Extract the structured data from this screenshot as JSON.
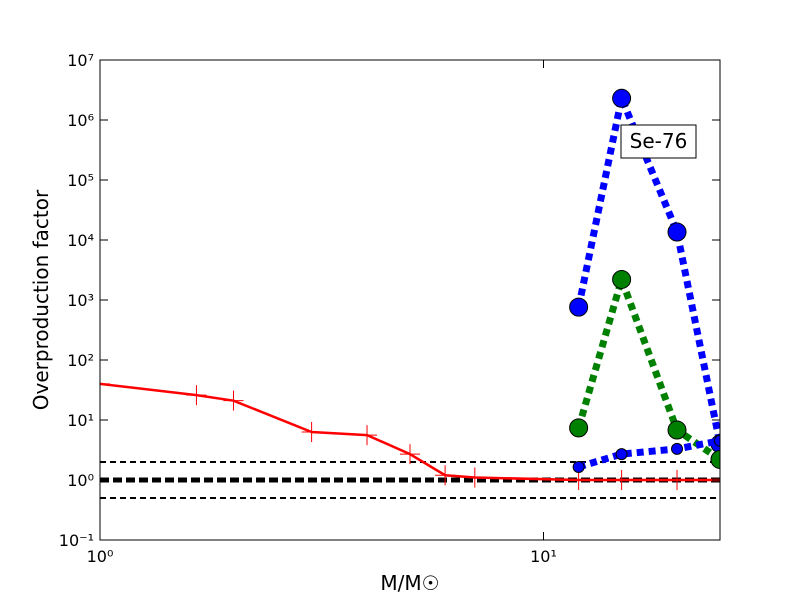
{
  "chart_data": {
    "type": "line",
    "xlabel": "M/M☉",
    "ylabel": "Overproduction factor",
    "annotation": "Se-76",
    "log_x": true,
    "log_y": true,
    "xlim": [
      1,
      25
    ],
    "ylim": [
      0.1,
      10000000
    ],
    "xticks": [
      {
        "value": 1,
        "label": "10⁰"
      },
      {
        "value": 10,
        "label": "10¹"
      }
    ],
    "yticks": [
      {
        "value": 0.1,
        "label": "10⁻¹"
      },
      {
        "value": 1,
        "label": "10⁰"
      },
      {
        "value": 10,
        "label": "10¹"
      },
      {
        "value": 100,
        "label": "10²"
      },
      {
        "value": 1000,
        "label": "10³"
      },
      {
        "value": 10000,
        "label": "10⁴"
      },
      {
        "value": 100000,
        "label": "10⁵"
      },
      {
        "value": 1000000,
        "label": "10⁶"
      },
      {
        "value": 10000000,
        "label": "10⁷"
      }
    ],
    "reference_lines": [
      {
        "value": 2,
        "style": "dashed"
      },
      {
        "value": 1,
        "style": "thick-dashed"
      },
      {
        "value": 0.5,
        "style": "dashed"
      }
    ],
    "series": [
      {
        "color": "#ff0000",
        "style": "solid",
        "marker": "plus",
        "x": [
          1,
          1.65,
          2,
          3,
          4,
          5,
          6,
          7,
          12,
          15,
          20,
          25
        ],
        "values": [
          40,
          26,
          21,
          6.3,
          5.6,
          2.7,
          1.2,
          1.1,
          1.0,
          1.0,
          1.0,
          1.0
        ]
      },
      {
        "color": "#0000ff",
        "style": "dotted",
        "marker": "big-circle",
        "x": [
          12,
          15,
          20,
          25
        ],
        "values": [
          760,
          2300000,
          13600,
          4
        ]
      },
      {
        "color": "#008000",
        "style": "dotted",
        "marker": "big-circle",
        "x": [
          12,
          15,
          20,
          25
        ],
        "values": [
          7.4,
          2200,
          6.8,
          2.2
        ]
      },
      {
        "color": "#0000ff",
        "style": "dotted",
        "marker": "small-circle",
        "x": [
          12,
          15,
          20,
          25
        ],
        "values": [
          1.65,
          2.7,
          3.3,
          4.5
        ]
      }
    ]
  }
}
